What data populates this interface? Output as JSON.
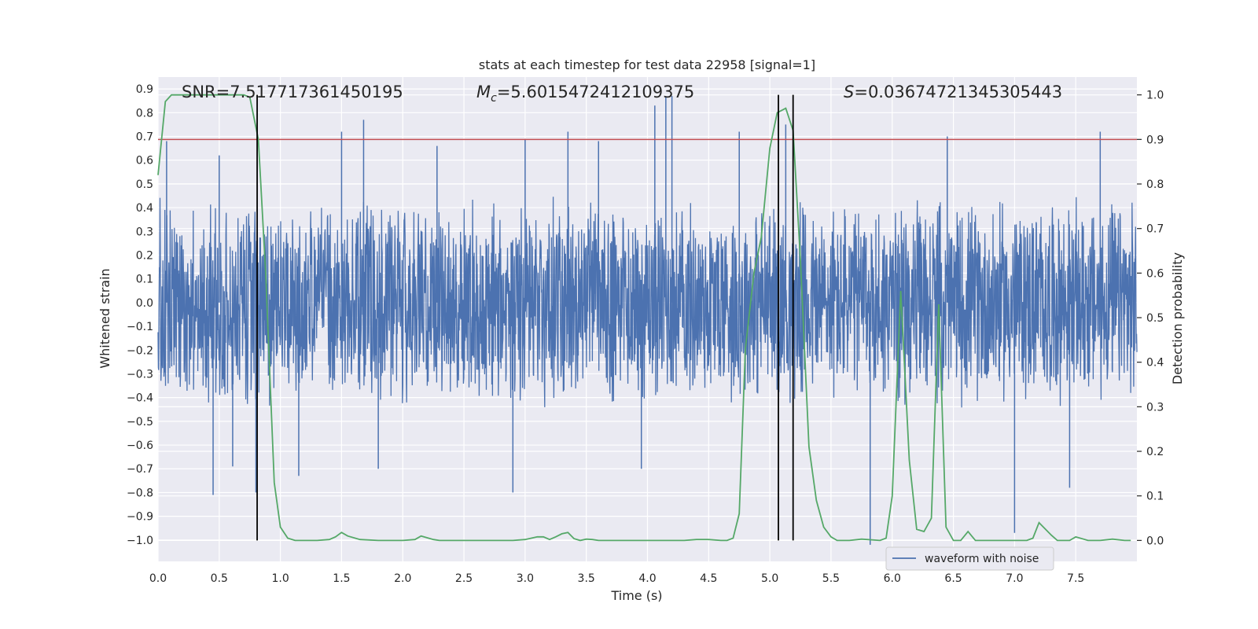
{
  "chart_data": {
    "type": "line",
    "title": "stats at each timestep for test data 22958 [signal=1]",
    "xlabel": "Time (s)",
    "ylabel": "Whitened strain",
    "y2label": "Detection probability",
    "xlim": [
      0.0,
      8.0
    ],
    "ylim": [
      -1.09,
      0.95
    ],
    "y2lim": [
      -0.047,
      1.04
    ],
    "grid": true,
    "x_ticks": [
      "0.0",
      "0.5",
      "1.0",
      "1.5",
      "2.0",
      "2.5",
      "3.0",
      "3.5",
      "4.0",
      "4.5",
      "5.0",
      "5.5",
      "6.0",
      "6.5",
      "7.0",
      "7.5"
    ],
    "y_ticks": [
      "0.9",
      "0.8",
      "0.7",
      "0.6",
      "0.5",
      "0.4",
      "0.3",
      "0.2",
      "0.1",
      "0.0",
      "−0.1",
      "−0.2",
      "−0.3",
      "−0.4",
      "−0.5",
      "−0.6",
      "−0.7",
      "−0.8",
      "−0.9",
      "−1.0"
    ],
    "y2_ticks": [
      "1.0",
      "0.9",
      "0.8",
      "0.7",
      "0.6",
      "0.5",
      "0.4",
      "0.3",
      "0.2",
      "0.1",
      "0.0"
    ],
    "annotations": {
      "snr": "SNR=7.517717361450195",
      "mc_prefix": "M",
      "mc_sub": "c",
      "mc_value": "=5.6015472412109375",
      "s_prefix": "S",
      "s_value": "=0.03674721345305443"
    },
    "threshold": {
      "y2": 0.9,
      "color": "#c44e52"
    },
    "vertical_lines_x": [
      0.81,
      5.07,
      5.19
    ],
    "waveform": {
      "name": "waveform with noise",
      "color": "#4c72b0",
      "typical_envelope": 0.45,
      "spikes": [
        {
          "x": 0.07,
          "y": 0.68
        },
        {
          "x": 0.45,
          "y": -0.81
        },
        {
          "x": 0.5,
          "y": 0.62
        },
        {
          "x": 0.61,
          "y": -0.69
        },
        {
          "x": 0.8,
          "y": -0.8
        },
        {
          "x": 1.15,
          "y": -0.73
        },
        {
          "x": 1.5,
          "y": 0.72
        },
        {
          "x": 1.68,
          "y": 0.77
        },
        {
          "x": 1.8,
          "y": -0.7
        },
        {
          "x": 2.28,
          "y": 0.66
        },
        {
          "x": 2.9,
          "y": -0.8
        },
        {
          "x": 3.0,
          "y": 0.69
        },
        {
          "x": 3.35,
          "y": 0.72
        },
        {
          "x": 3.6,
          "y": 0.68
        },
        {
          "x": 3.95,
          "y": -0.7
        },
        {
          "x": 4.06,
          "y": 0.83
        },
        {
          "x": 4.15,
          "y": 0.87
        },
        {
          "x": 4.2,
          "y": 0.87
        },
        {
          "x": 4.75,
          "y": 0.72
        },
        {
          "x": 5.13,
          "y": 0.75
        },
        {
          "x": 5.82,
          "y": -1.02
        },
        {
          "x": 6.45,
          "y": 0.7
        },
        {
          "x": 7.0,
          "y": -0.97
        },
        {
          "x": 7.45,
          "y": -0.78
        },
        {
          "x": 7.7,
          "y": 0.72
        }
      ]
    },
    "probability": {
      "color": "#55a868",
      "x": [
        0.0,
        0.06,
        0.11,
        0.2,
        0.3,
        0.4,
        0.5,
        0.6,
        0.7,
        0.75,
        0.82,
        0.88,
        0.95,
        1.0,
        1.06,
        1.12,
        1.2,
        1.3,
        1.4,
        1.45,
        1.5,
        1.55,
        1.65,
        1.8,
        2.0,
        2.1,
        2.15,
        2.2,
        2.25,
        2.3,
        2.4,
        2.5,
        2.6,
        2.7,
        2.8,
        2.9,
        3.0,
        3.1,
        3.15,
        3.2,
        3.25,
        3.3,
        3.35,
        3.4,
        3.45,
        3.5,
        3.55,
        3.6,
        3.7,
        3.8,
        3.9,
        4.0,
        4.1,
        4.2,
        4.3,
        4.4,
        4.5,
        4.6,
        4.65,
        4.7,
        4.75,
        4.8,
        4.87,
        4.93,
        5.0,
        5.06,
        5.13,
        5.19,
        5.25,
        5.32,
        5.38,
        5.44,
        5.5,
        5.55,
        5.65,
        5.75,
        5.9,
        5.95,
        6.0,
        6.07,
        6.14,
        6.2,
        6.26,
        6.32,
        6.38,
        6.44,
        6.5,
        6.56,
        6.62,
        6.68,
        6.75,
        6.85,
        7.0,
        7.1,
        7.15,
        7.2,
        7.3,
        7.35,
        7.45,
        7.5,
        7.6,
        7.7,
        7.8,
        7.9,
        7.95
      ],
      "y": [
        0.82,
        0.985,
        1.0,
        1.0,
        1.0,
        1.0,
        1.0,
        1.0,
        1.0,
        0.995,
        0.9,
        0.6,
        0.13,
        0.03,
        0.005,
        0.0,
        0.0,
        0.0,
        0.002,
        0.008,
        0.018,
        0.01,
        0.002,
        0.0,
        0.0,
        0.002,
        0.01,
        0.006,
        0.002,
        0.0,
        0.0,
        0.0,
        0.0,
        0.0,
        0.0,
        0.0,
        0.002,
        0.008,
        0.008,
        0.002,
        0.008,
        0.015,
        0.018,
        0.004,
        0.0,
        0.003,
        0.002,
        0.0,
        0.0,
        0.0,
        0.0,
        0.0,
        0.0,
        0.0,
        0.0,
        0.002,
        0.002,
        0.0,
        0.0,
        0.005,
        0.06,
        0.43,
        0.6,
        0.68,
        0.88,
        0.96,
        0.97,
        0.92,
        0.63,
        0.21,
        0.09,
        0.03,
        0.008,
        0.0,
        0.0,
        0.003,
        0.0,
        0.005,
        0.1,
        0.56,
        0.18,
        0.025,
        0.02,
        0.05,
        0.53,
        0.03,
        0.0,
        0.0,
        0.02,
        0.0,
        0.0,
        0.0,
        0.0,
        0.0,
        0.005,
        0.04,
        0.012,
        0.0,
        0.0,
        0.008,
        0.0,
        0.0,
        0.003,
        0.0,
        0.0
      ]
    },
    "legend": {
      "label": "waveform with noise",
      "placement": "lower-right"
    }
  }
}
